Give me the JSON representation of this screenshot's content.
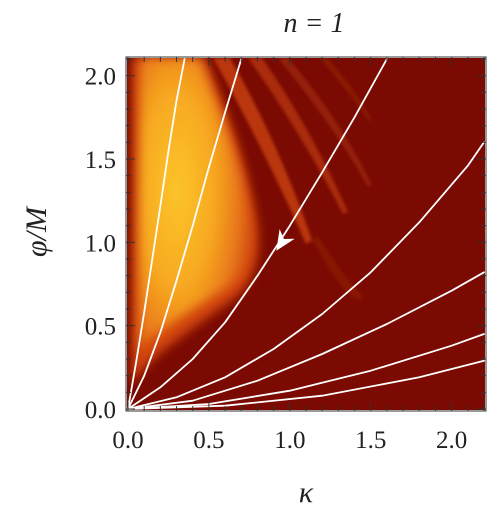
{
  "chart_data": {
    "type": "heatmap",
    "title": "n = 1",
    "xlabel": "κ",
    "ylabel": "φ/M",
    "xlim": [
      0.0,
      2.2
    ],
    "ylim": [
      0.0,
      2.1
    ],
    "x_ticks": [
      {
        "value": 0.0,
        "label": "0.0"
      },
      {
        "value": 0.5,
        "label": "0.5"
      },
      {
        "value": 1.0,
        "label": "1.0"
      },
      {
        "value": 1.5,
        "label": "1.5"
      },
      {
        "value": 2.0,
        "label": "2.0"
      }
    ],
    "y_ticks": [
      {
        "value": 0.0,
        "label": "0.0"
      },
      {
        "value": 0.5,
        "label": "0.5"
      },
      {
        "value": 1.0,
        "label": "1.0"
      },
      {
        "value": 1.5,
        "label": "1.5"
      },
      {
        "value": 2.0,
        "label": "2.0"
      }
    ],
    "colors": {
      "background": "#7a0a02",
      "band": "#c13a10",
      "hot_outer": "#d2440c",
      "hot_mid": "#f28a1c",
      "hot_core": "#fcc52a",
      "trajectory": "#ffffff"
    },
    "trajectories": [
      {
        "x": [
          0.0,
          0.05,
          0.1,
          0.15,
          0.2,
          0.25,
          0.3,
          0.35
        ],
        "y": [
          0.0,
          0.28,
          0.58,
          0.9,
          1.22,
          1.55,
          1.85,
          2.1
        ]
      },
      {
        "x": [
          0.0,
          0.1,
          0.2,
          0.3,
          0.4,
          0.5,
          0.6,
          0.7
        ],
        "y": [
          0.0,
          0.2,
          0.46,
          0.77,
          1.1,
          1.45,
          1.78,
          2.1
        ]
      },
      {
        "x": [
          0.0,
          0.2,
          0.4,
          0.6,
          0.8,
          1.0,
          1.2,
          1.4,
          1.6
        ],
        "y": [
          0.0,
          0.13,
          0.3,
          0.52,
          0.8,
          1.1,
          1.42,
          1.75,
          2.1
        ]
      },
      {
        "x": [
          0.0,
          0.3,
          0.6,
          0.9,
          1.2,
          1.5,
          1.8,
          2.1,
          2.2
        ],
        "y": [
          0.0,
          0.07,
          0.19,
          0.36,
          0.57,
          0.82,
          1.12,
          1.46,
          1.6
        ]
      },
      {
        "x": [
          0.0,
          0.4,
          0.8,
          1.2,
          1.6,
          2.0,
          2.2
        ],
        "y": [
          0.0,
          0.05,
          0.17,
          0.33,
          0.51,
          0.71,
          0.82
        ]
      },
      {
        "x": [
          0.0,
          0.5,
          1.0,
          1.5,
          2.0,
          2.2
        ],
        "y": [
          0.0,
          0.03,
          0.11,
          0.23,
          0.38,
          0.45
        ]
      },
      {
        "x": [
          0.0,
          0.6,
          1.2,
          1.8,
          2.2
        ],
        "y": [
          0.0,
          0.02,
          0.08,
          0.19,
          0.29
        ]
      }
    ],
    "arrow": {
      "trajectory_index": 2,
      "x": 0.95,
      "y": 1.0
    }
  }
}
